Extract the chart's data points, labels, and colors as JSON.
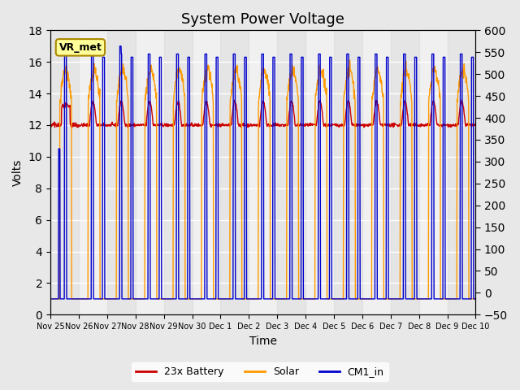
{
  "title": "System Power Voltage",
  "xlabel": "Time",
  "ylabel_left": "Volts",
  "ylabel_right": "",
  "ylim_left": [
    0,
    18
  ],
  "ylim_right": [
    -50,
    600
  ],
  "yticks_left": [
    0,
    2,
    4,
    6,
    8,
    10,
    12,
    14,
    16,
    18
  ],
  "yticks_right": [
    -50,
    0,
    50,
    100,
    150,
    200,
    250,
    300,
    350,
    400,
    450,
    500,
    550,
    600
  ],
  "xtick_labels": [
    "Nov 25",
    "Nov 26",
    "Nov 27",
    "Nov 28",
    "Nov 29",
    "Nov 30",
    "Dec 1",
    "Dec 2",
    "Dec 3",
    "Dec 4",
    "Dec 5",
    "Dec 6",
    "Dec 7",
    "Dec 8",
    "Dec 9",
    "Dec 10"
  ],
  "bg_color": "#e8e8e8",
  "plot_bg_color": "#f0f0f0",
  "grid_color": "#ffffff",
  "colors": {
    "battery": "#cc0000",
    "solar": "#ff9900",
    "cm1": "#0000cc"
  },
  "legend": [
    "23x Battery",
    "Solar",
    "CM1_in"
  ],
  "vr_met_label": "VR_met",
  "title_fontsize": 13,
  "axis_fontsize": 10,
  "label_fontsize": 10
}
